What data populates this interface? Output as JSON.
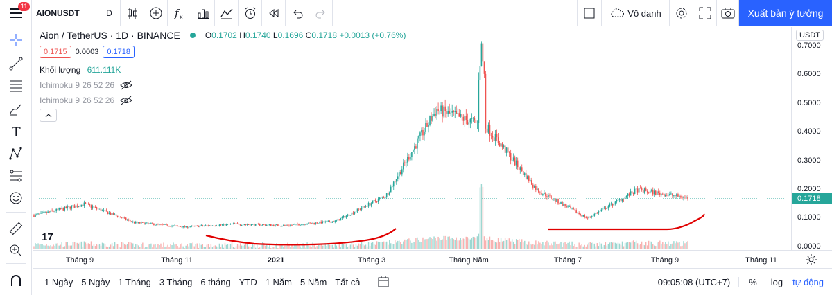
{
  "toolbar": {
    "notification_count": "11",
    "symbol": "AIONUSDT",
    "interval": "D",
    "chart_name": "Vô danh",
    "publish_label": "Xuất bản ý tưởng"
  },
  "legend": {
    "title": "Aion / TetherUS · 1D · BINANCE",
    "open_label": "O",
    "open": "0.1702",
    "high_label": "H",
    "high": "0.1740",
    "low_label": "L",
    "low": "0.1696",
    "close_label": "C",
    "close": "0.1718",
    "change": "+0.0013 (+0.76%)",
    "bid": "0.1715",
    "spread": "0.0003",
    "ask": "0.1718",
    "volume_label": "Khối lượng",
    "volume_value": "611.111K",
    "indicators": [
      "Ichimoku 9 26 52 26",
      "Ichimoku 9 26 52 26"
    ]
  },
  "price_scale": {
    "currency": "USDT",
    "ticks": [
      "0.7000",
      "0.6000",
      "0.5000",
      "0.4000",
      "0.3000",
      "0.2000",
      "0.1000",
      "0.0000"
    ],
    "last_price": "0.1718"
  },
  "time_scale": {
    "ticks": [
      "Tháng 9",
      "Tháng 11",
      "2021",
      "Tháng 3",
      "Tháng Năm",
      "Tháng 7",
      "Tháng 9",
      "Tháng 11"
    ]
  },
  "bottom_bar": {
    "ranges": [
      "1 Ngày",
      "5 Ngày",
      "1 Tháng",
      "3 Tháng",
      "6 tháng",
      "YTD",
      "1 Năm",
      "5 Năm",
      "Tất cả"
    ],
    "clock": "09:05:08 (UTC+7)",
    "percent": "%",
    "log": "log",
    "auto": "tự động"
  },
  "colors": {
    "up": "#26a69a",
    "down": "#ef5350",
    "accent": "#2962ff",
    "annotation": "#e00000"
  },
  "chart_data": {
    "type": "candlestick",
    "title": "Aion / TetherUS · 1D · BINANCE",
    "ylim": [
      0,
      0.72
    ],
    "x_range": [
      "Tháng 8 2020",
      "Tháng 9 2021"
    ],
    "anchors": [
      {
        "month": "Tháng 8 2020",
        "price": 0.11
      },
      {
        "month": "Tháng 9 2020",
        "price": 0.15
      },
      {
        "month": "Tháng 10 2020",
        "price": 0.085
      },
      {
        "month": "Tháng 11 2020",
        "price": 0.07
      },
      {
        "month": "Tháng 12 2020",
        "price": 0.08
      },
      {
        "month": "Tháng 1 2021",
        "price": 0.075
      },
      {
        "month": "Tháng 2 2021",
        "price": 0.09
      },
      {
        "month": "Tháng 3 2021",
        "price": 0.18
      },
      {
        "month": "Tháng 4 2021",
        "price": 0.48
      },
      {
        "month": "Tháng 5 2021",
        "price": 0.42
      },
      {
        "month": "Tháng 6 2021",
        "price": 0.2
      },
      {
        "month": "Tháng 7 2021",
        "price": 0.1
      },
      {
        "month": "Tháng 8 2021",
        "price": 0.2
      },
      {
        "month": "Tháng 9 2021",
        "price": 0.1718
      }
    ],
    "peak_high": 0.7,
    "last_close": 0.1718
  }
}
